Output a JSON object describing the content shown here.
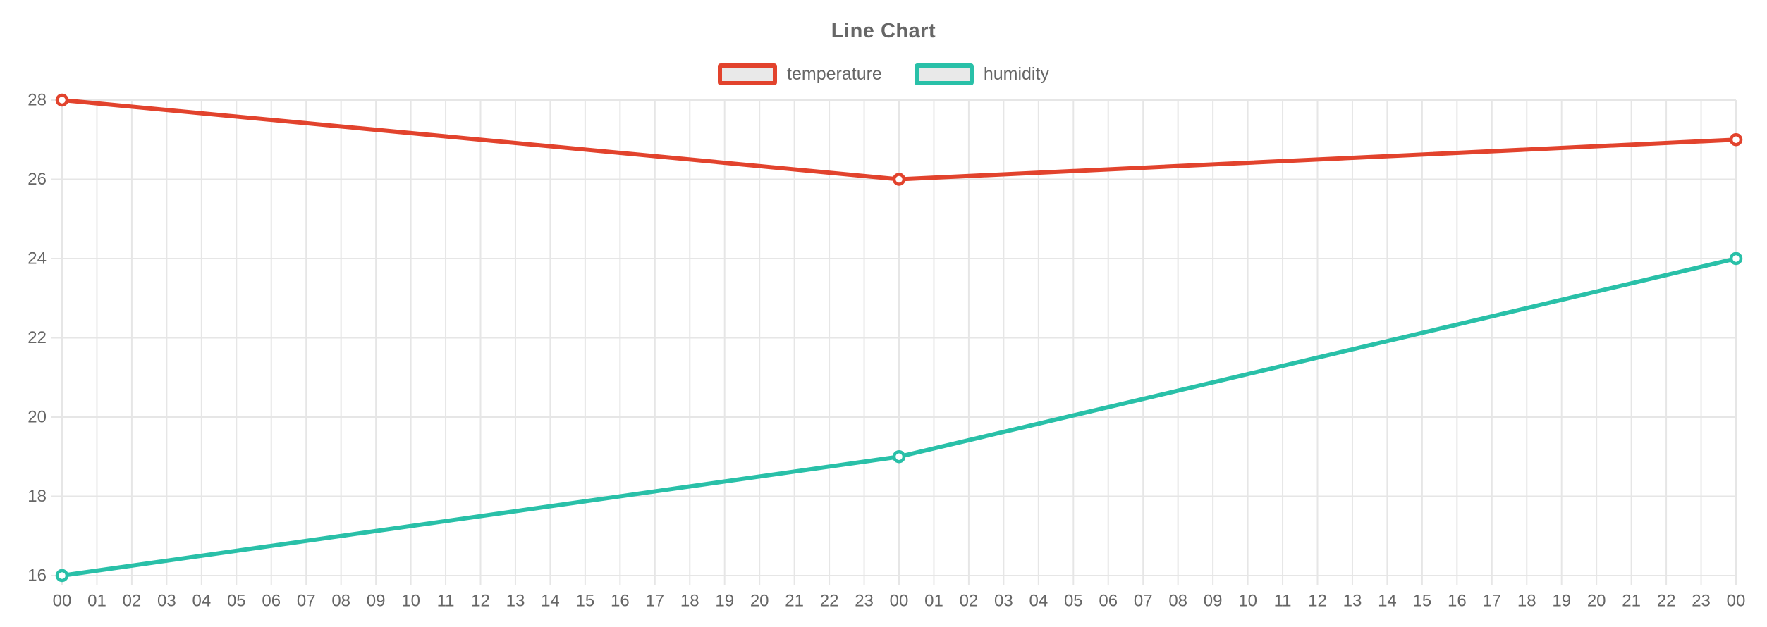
{
  "chart_data": {
    "type": "line",
    "title": "Line Chart",
    "xlabel": "",
    "ylabel": "",
    "ylim": [
      16,
      28
    ],
    "y_ticks": [
      16,
      18,
      20,
      22,
      24,
      26,
      28
    ],
    "grid": true,
    "legend_position": "top-center",
    "x_labels": [
      "00",
      "01",
      "02",
      "03",
      "04",
      "05",
      "06",
      "07",
      "08",
      "09",
      "10",
      "11",
      "12",
      "13",
      "14",
      "15",
      "16",
      "17",
      "18",
      "19",
      "20",
      "21",
      "22",
      "23",
      "00",
      "01",
      "02",
      "03",
      "04",
      "05",
      "06",
      "07",
      "08",
      "09",
      "10",
      "11",
      "12",
      "13",
      "14",
      "15",
      "16",
      "17",
      "18",
      "19",
      "20",
      "21",
      "22",
      "23",
      "00"
    ],
    "series": [
      {
        "name": "temperature",
        "color": "#e2432d",
        "points": [
          {
            "x": 0,
            "y": 28
          },
          {
            "x": 24,
            "y": 26
          },
          {
            "x": 48,
            "y": 27
          }
        ]
      },
      {
        "name": "humidity",
        "color": "#29c0a8",
        "points": [
          {
            "x": 0,
            "y": 16
          },
          {
            "x": 24,
            "y": 19
          },
          {
            "x": 48,
            "y": 24
          }
        ]
      }
    ]
  },
  "colors": {
    "grid": "#e6e6e6",
    "tick_text": "#666666",
    "title_text": "#666666",
    "legend_swatch_fill": "#e9e9e9",
    "marker_fill": "#ffffff",
    "background": "#ffffff"
  }
}
